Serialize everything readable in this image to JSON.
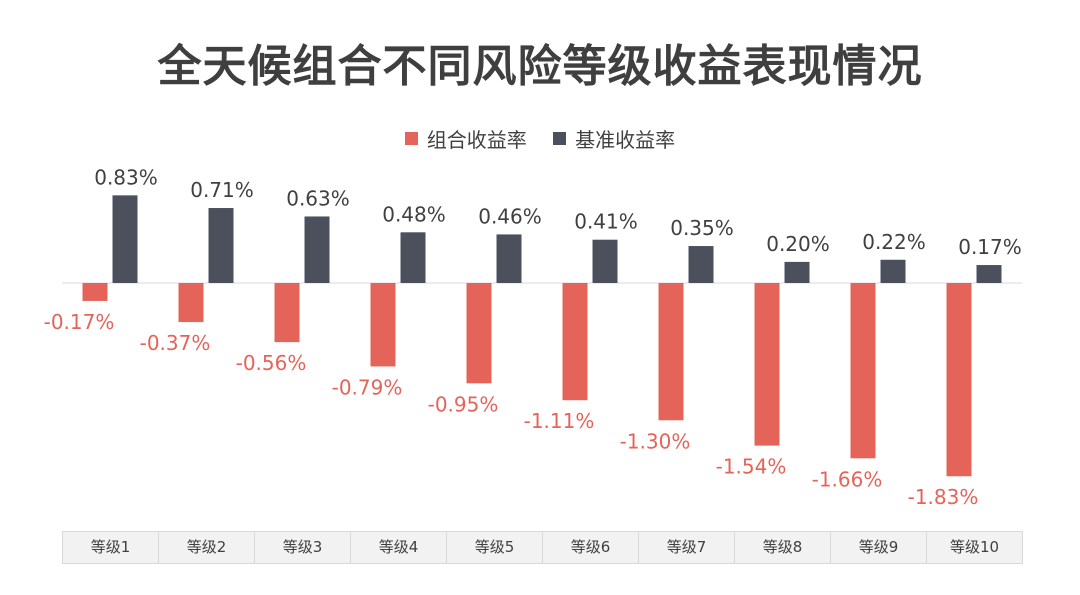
{
  "chart_data": {
    "type": "bar",
    "title": "全天候组合不同风险等级收益表现情况",
    "categories": [
      "等级1",
      "等级2",
      "等级3",
      "等级4",
      "等级5",
      "等级6",
      "等级7",
      "等级8",
      "等级9",
      "等级10"
    ],
    "series": [
      {
        "name": "组合收益率",
        "color": "#e5645a",
        "values": [
          -0.17,
          -0.37,
          -0.56,
          -0.79,
          -0.95,
          -1.11,
          -1.3,
          -1.54,
          -1.66,
          -1.83
        ],
        "labels": [
          "-0.17%",
          "-0.37%",
          "-0.56%",
          "-0.79%",
          "-0.95%",
          "-1.11%",
          "-1.30%",
          "-1.54%",
          "-1.66%",
          "-1.83%"
        ]
      },
      {
        "name": "基准收益率",
        "color": "#4b505c",
        "values": [
          0.83,
          0.71,
          0.63,
          0.48,
          0.46,
          0.41,
          0.35,
          0.2,
          0.22,
          0.17
        ],
        "labels": [
          "0.83%",
          "0.71%",
          "0.63%",
          "0.48%",
          "0.46%",
          "0.41%",
          "0.35%",
          "0.20%",
          "0.22%",
          "0.17%"
        ]
      }
    ],
    "xlabel": "",
    "ylabel": "",
    "ylim": [
      -1.83,
      0.83
    ],
    "legend_position": "top-center",
    "grid": false
  }
}
